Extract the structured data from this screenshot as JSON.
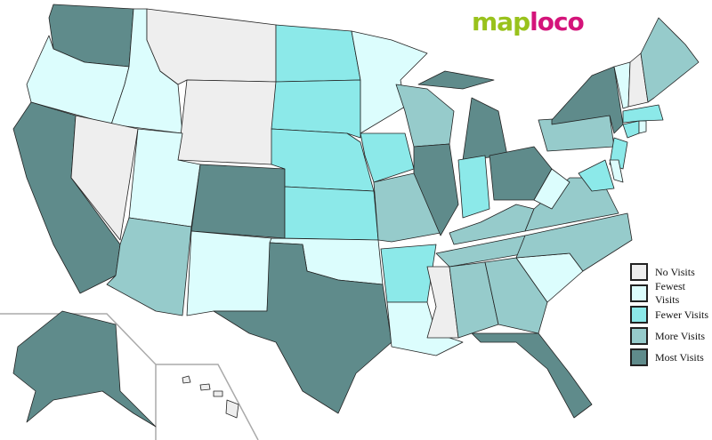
{
  "logo": {
    "part1": "map",
    "part2": "loco"
  },
  "legend": [
    {
      "key": "none",
      "label": "No Visits",
      "color": "#eeeeee"
    },
    {
      "key": "fewest",
      "label": "Fewest Visits",
      "color": "#dcfdfd"
    },
    {
      "key": "fewer",
      "label": "Fewer Visits",
      "color": "#8ce9e9"
    },
    {
      "key": "more",
      "label": "More Visits",
      "color": "#96cbcb"
    },
    {
      "key": "most",
      "label": "Most Visits",
      "color": "#5f8b8b"
    }
  ],
  "states": {
    "WA": "most",
    "OR": "fewest",
    "ID": "fewest",
    "MT": "none",
    "WY": "none",
    "CA": "most",
    "NV": "none",
    "UT": "fewest",
    "AZ": "more",
    "CO": "most",
    "NM": "fewest",
    "ND": "fewer",
    "SD": "fewer",
    "NE": "fewer",
    "KS": "fewer",
    "OK": "fewest",
    "TX": "most",
    "MN": "fewest",
    "IA": "fewer",
    "MO": "more",
    "AR": "fewer",
    "LA": "fewest",
    "WI": "more",
    "IL": "most",
    "MS": "none",
    "MI": "most",
    "IN": "fewer",
    "OH": "most",
    "KY": "more",
    "TN": "more",
    "AL": "more",
    "GA": "more",
    "FL": "most",
    "SC": "fewest",
    "NC": "more",
    "VA": "more",
    "WV": "fewest",
    "PA": "more",
    "NY": "most",
    "NJ": "fewer",
    "MD": "fewer",
    "DE": "fewest",
    "CT": "fewer",
    "RI": "fewest",
    "MA": "fewer",
    "VT": "fewest",
    "NH": "none",
    "ME": "more",
    "AK": "most",
    "HI": "none"
  }
}
